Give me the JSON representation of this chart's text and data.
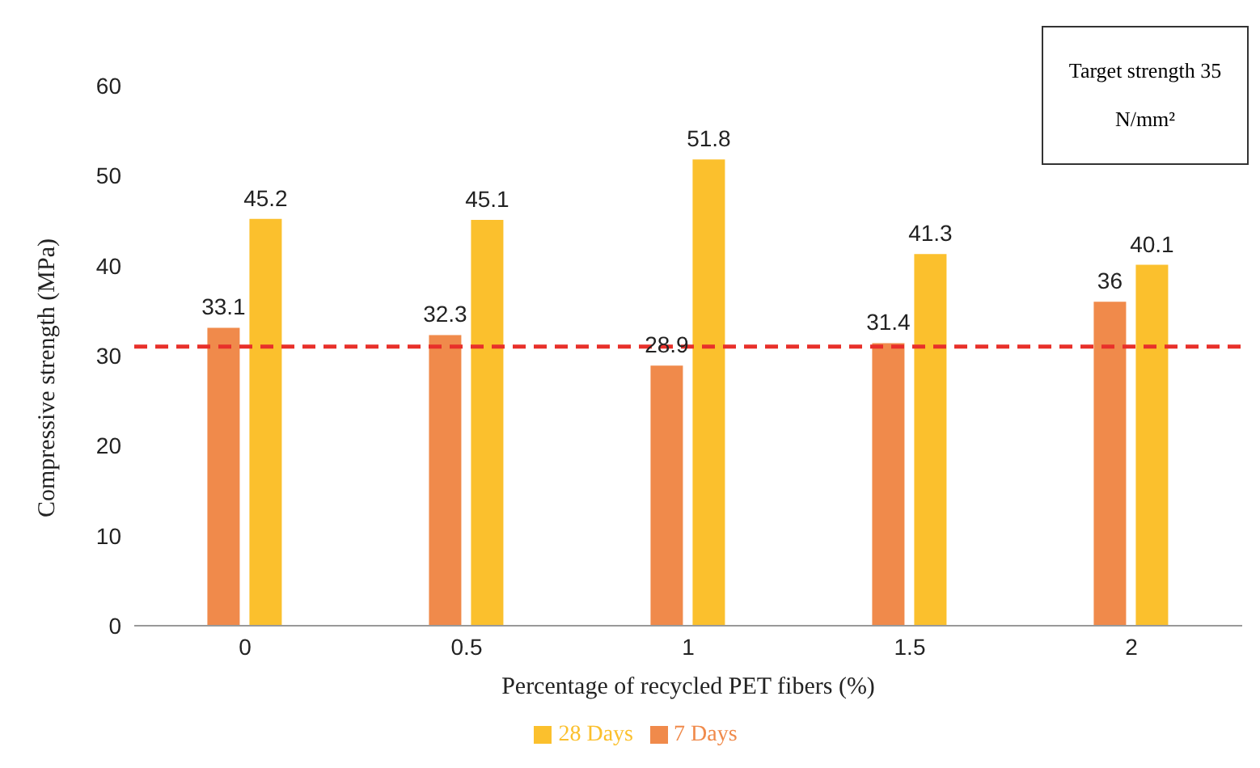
{
  "chart_data": {
    "type": "bar",
    "xlabel": "Percentage of recycled PET fibers (%)",
    "ylabel": "Compressive strength (MPa)",
    "categories": [
      "0",
      "0.5",
      "1",
      "1.5",
      "2"
    ],
    "series": [
      {
        "name": "7 Days",
        "color": "#f08a4b",
        "values": [
          33.1,
          32.3,
          28.9,
          31.4,
          36
        ]
      },
      {
        "name": "28 Days",
        "color": "#fbc02d",
        "values": [
          45.2,
          45.1,
          51.8,
          41.3,
          40.1
        ]
      }
    ],
    "ylim": [
      0,
      60
    ],
    "yticks": [
      0,
      10,
      20,
      30,
      40,
      50,
      60
    ],
    "grid": false,
    "legend": "bottom",
    "data_labels": true,
    "ref_lines": [
      {
        "axis": "y",
        "value": 31,
        "color": "#e8302a",
        "line_style": "dashed"
      }
    ],
    "annotations": [
      "Target strength 35 N/mm²"
    ]
  }
}
